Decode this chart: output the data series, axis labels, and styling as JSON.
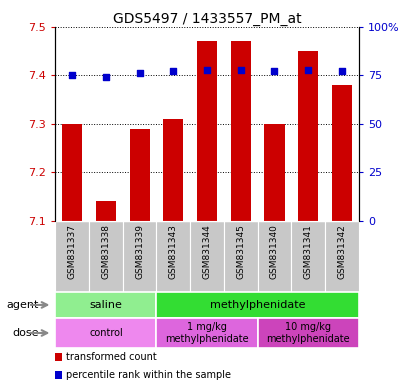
{
  "title": "GDS5497 / 1433557_PM_at",
  "samples": [
    "GSM831337",
    "GSM831338",
    "GSM831339",
    "GSM831343",
    "GSM831344",
    "GSM831345",
    "GSM831340",
    "GSM831341",
    "GSM831342"
  ],
  "transformed_counts": [
    7.3,
    7.14,
    7.29,
    7.31,
    7.47,
    7.47,
    7.3,
    7.45,
    7.38
  ],
  "percentile_ranks": [
    75,
    74,
    76,
    77,
    78,
    78,
    77,
    78,
    77
  ],
  "ylim_left": [
    7.1,
    7.5
  ],
  "yticks_left": [
    7.1,
    7.2,
    7.3,
    7.4,
    7.5
  ],
  "ylim_right": [
    0,
    100
  ],
  "yticks_right": [
    0,
    25,
    50,
    75,
    100
  ],
  "yticklabels_right": [
    "0",
    "25",
    "50",
    "75",
    "100%"
  ],
  "bar_color": "#cc0000",
  "dot_color": "#0000cc",
  "agent_groups": [
    {
      "label": "saline",
      "start": 0,
      "end": 3,
      "color": "#90ee90"
    },
    {
      "label": "methylphenidate",
      "start": 3,
      "end": 9,
      "color": "#33dd33"
    }
  ],
  "dose_groups": [
    {
      "label": "control",
      "start": 0,
      "end": 3,
      "color": "#ee88ee"
    },
    {
      "label": "1 mg/kg\nmethylphenidate",
      "start": 3,
      "end": 6,
      "color": "#dd66dd"
    },
    {
      "label": "10 mg/kg\nmethylphenidate",
      "start": 6,
      "end": 9,
      "color": "#cc44bb"
    }
  ],
  "legend_items": [
    {
      "label": "transformed count",
      "color": "#cc0000"
    },
    {
      "label": "percentile rank within the sample",
      "color": "#0000cc"
    }
  ],
  "tick_label_fontsize": 8,
  "title_fontsize": 10,
  "bar_width": 0.6
}
